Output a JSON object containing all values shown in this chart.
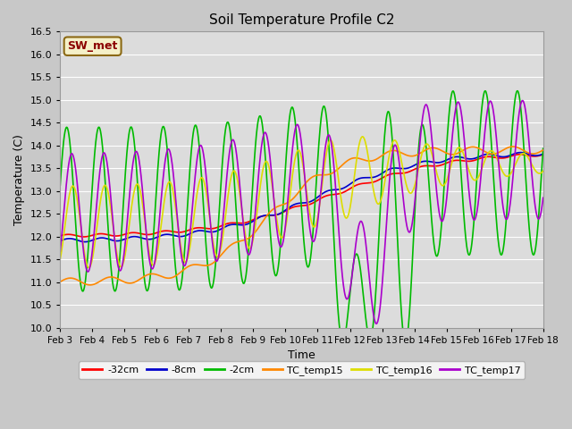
{
  "title": "Soil Temperature Profile C2",
  "xlabel": "Time",
  "ylabel": "Temperature (C)",
  "ylim": [
    10.0,
    16.5
  ],
  "yticks": [
    10.0,
    10.5,
    11.0,
    11.5,
    12.0,
    12.5,
    13.0,
    13.5,
    14.0,
    14.5,
    15.0,
    15.5,
    16.0,
    16.5
  ],
  "fig_facecolor": "#c8c8c8",
  "plot_facecolor": "#dcdcdc",
  "legend_label": "SW_met",
  "legend_box_facecolor": "#f5f0c8",
  "legend_box_edge": "#8b6914",
  "legend_text_color": "#8b0000",
  "series": {
    "neg32cm": {
      "color": "#ff0000",
      "label": "-32cm",
      "lw": 1.2
    },
    "neg8cm": {
      "color": "#0000cc",
      "label": "-8cm",
      "lw": 1.2
    },
    "neg2cm": {
      "color": "#00bb00",
      "label": "-2cm",
      "lw": 1.2
    },
    "tc15": {
      "color": "#ff8800",
      "label": "TC_temp15",
      "lw": 1.2
    },
    "tc16": {
      "color": "#dddd00",
      "label": "TC_temp16",
      "lw": 1.2
    },
    "tc17": {
      "color": "#aa00cc",
      "label": "TC_temp17",
      "lw": 1.2
    }
  },
  "xtick_labels": [
    "Feb 3",
    "Feb 4",
    "Feb 5",
    "Feb 6",
    "Feb 7",
    "Feb 8",
    "Feb 9",
    "Feb 10",
    "Feb 11",
    "Feb 12",
    "Feb 13",
    "Feb 14",
    "Feb 15",
    "Feb 16",
    "Feb 17",
    "Feb 18"
  ]
}
